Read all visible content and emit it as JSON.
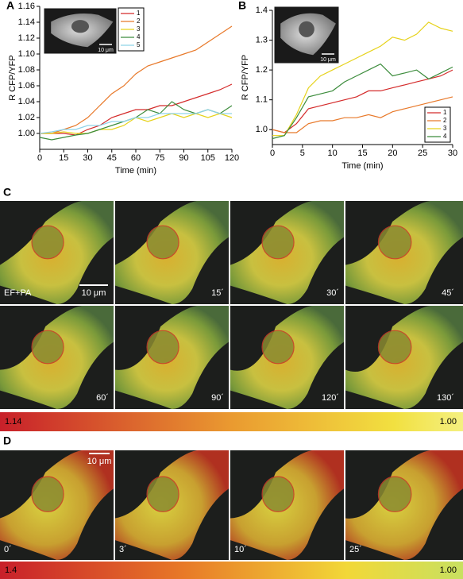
{
  "chart_data": [
    {
      "type": "line",
      "panel_label": "A",
      "xlabel": "Time (min)",
      "ylabel": "R CFP/YFP",
      "x": [
        0,
        7.5,
        15,
        22.5,
        30,
        37.5,
        45,
        52.5,
        60,
        67.5,
        75,
        82.5,
        90,
        97.5,
        105,
        112.5,
        120
      ],
      "xlim": [
        0,
        120
      ],
      "xticks": [
        0,
        15,
        30,
        45,
        60,
        75,
        90,
        105,
        120
      ],
      "ylim": [
        0.98,
        1.16
      ],
      "yticks": [
        {
          "value": 1.0,
          "label": "1.00"
        },
        1.02,
        1.04,
        1.06,
        1.08,
        {
          "value": 1.1,
          "label": "1.10"
        },
        1.12,
        1.14,
        1.16
      ],
      "inset_scale": "10 μm",
      "series": [
        {
          "name": "1",
          "color": "#d42a2a",
          "values": [
            1.0,
            1.0,
            1.0,
            0.998,
            1.005,
            1.01,
            1.02,
            1.025,
            1.03,
            1.03,
            1.035,
            1.035,
            1.04,
            1.045,
            1.05,
            1.055,
            1.062
          ]
        },
        {
          "name": "2",
          "color": "#e8792a",
          "values": [
            1.0,
            1.0,
            1.005,
            1.01,
            1.02,
            1.035,
            1.05,
            1.06,
            1.075,
            1.085,
            1.09,
            1.095,
            1.1,
            1.105,
            1.115,
            1.125,
            1.135
          ]
        },
        {
          "name": "3",
          "color": "#e6d21a",
          "values": [
            1.0,
            1.0,
            1.002,
            1.0,
            1.0,
            1.005,
            1.005,
            1.01,
            1.02,
            1.015,
            1.02,
            1.025,
            1.02,
            1.025,
            1.02,
            1.025,
            1.02
          ]
        },
        {
          "name": "4",
          "color": "#3c8c3c",
          "values": [
            0.995,
            0.992,
            0.995,
            0.998,
            1.0,
            1.005,
            1.01,
            1.015,
            1.02,
            1.03,
            1.025,
            1.04,
            1.03,
            1.025,
            1.03,
            1.025,
            1.035
          ]
        },
        {
          "name": "5",
          "color": "#8fd3e8",
          "values": [
            1.0,
            1.002,
            1.005,
            1.005,
            1.01,
            1.01,
            1.015,
            1.015,
            1.02,
            1.02,
            1.025,
            1.025,
            1.025,
            1.025,
            1.03,
            1.025,
            1.025
          ]
        }
      ]
    },
    {
      "type": "line",
      "panel_label": "B",
      "xlabel": "Time (min)",
      "ylabel": "R CFP/YFP",
      "x": [
        0,
        2,
        4,
        6,
        8,
        10,
        12,
        14,
        16,
        18,
        20,
        22,
        24,
        26,
        28,
        30
      ],
      "xlim": [
        0,
        30
      ],
      "xticks": [
        0,
        5,
        10,
        15,
        20,
        25,
        30
      ],
      "ylim": [
        0.95,
        1.4
      ],
      "yticks": [
        {
          "value": 1.0,
          "label": "1.0"
        },
        1.1,
        1.2,
        1.3,
        1.4
      ],
      "inset_scale": "10 μm",
      "series": [
        {
          "name": "1",
          "color": "#d42a2a",
          "values": [
            1.0,
            0.99,
            1.02,
            1.07,
            1.08,
            1.09,
            1.1,
            1.11,
            1.13,
            1.13,
            1.14,
            1.15,
            1.16,
            1.17,
            1.18,
            1.2
          ]
        },
        {
          "name": "2",
          "color": "#e8792a",
          "values": [
            1.0,
            0.99,
            0.99,
            1.02,
            1.03,
            1.03,
            1.04,
            1.04,
            1.05,
            1.04,
            1.06,
            1.07,
            1.08,
            1.09,
            1.1,
            1.11
          ]
        },
        {
          "name": "3",
          "color": "#e6d21a",
          "values": [
            0.98,
            0.98,
            1.05,
            1.14,
            1.18,
            1.2,
            1.22,
            1.24,
            1.26,
            1.28,
            1.31,
            1.3,
            1.32,
            1.36,
            1.34,
            1.33
          ]
        },
        {
          "name": "4",
          "color": "#3c8c3c",
          "values": [
            0.97,
            0.98,
            1.04,
            1.11,
            1.12,
            1.13,
            1.16,
            1.18,
            1.2,
            1.22,
            1.18,
            1.19,
            1.2,
            1.17,
            1.19,
            1.21
          ]
        }
      ]
    }
  ],
  "panel_c": {
    "label": "C",
    "scale": "10 μm",
    "frames": [
      "EF+PA",
      "15´",
      "30´",
      "45´",
      "60´",
      "90´",
      "120´",
      "130´"
    ],
    "colorbar": [
      "1.14",
      "1.00"
    ]
  },
  "panel_d": {
    "label": "D",
    "scale": "10 μm",
    "frames": [
      "0´",
      "3´",
      "10´",
      "25´"
    ],
    "colorbar": [
      "1.4",
      "1.00"
    ]
  }
}
